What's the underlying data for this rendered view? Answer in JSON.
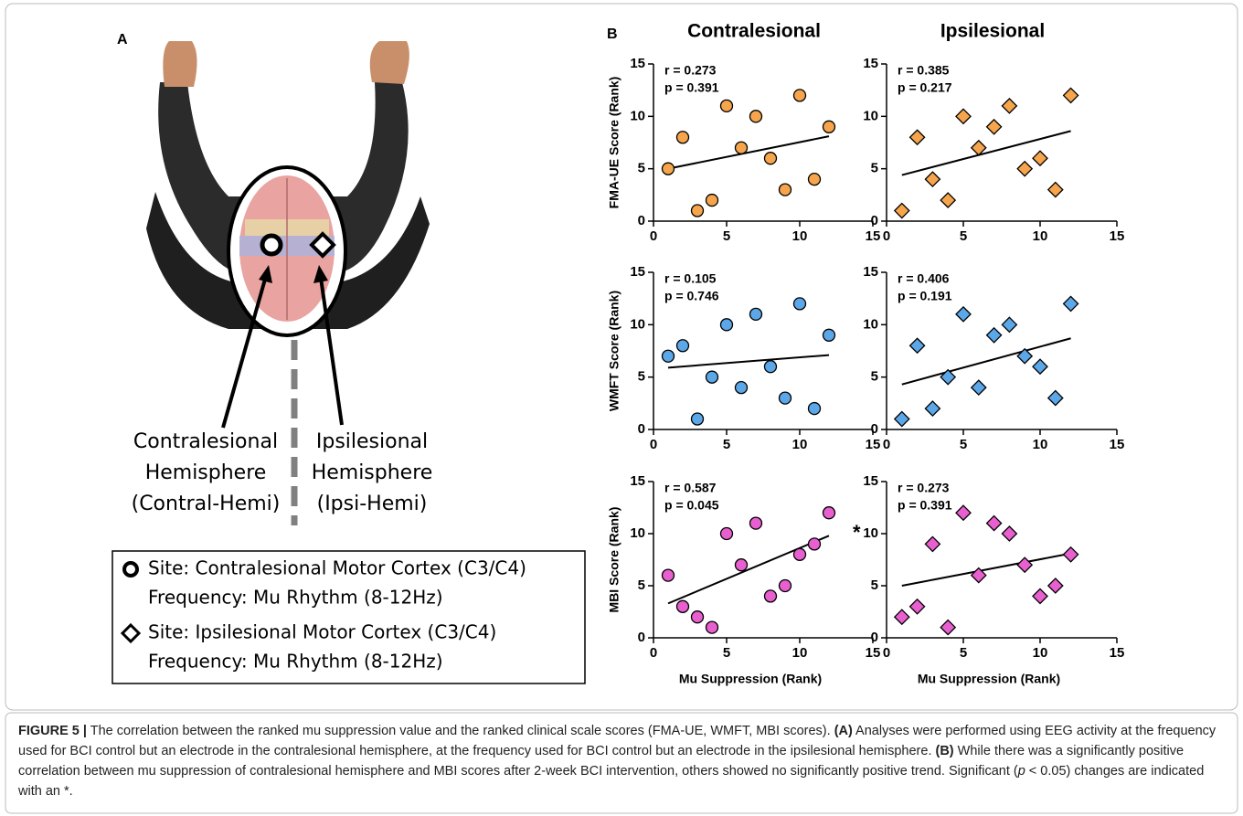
{
  "panel_labels": [
    "A",
    "B"
  ],
  "panel_a": {
    "left_label": [
      "Contralesional",
      "Hemisphere",
      "(Contral-Hemi)"
    ],
    "right_label": [
      "Ipsilesional",
      "Hemisphere",
      "(Ipsi-Hemi)"
    ],
    "legend": [
      {
        "marker": "circle",
        "lines": [
          "Site: Contralesional Motor Cortex (C3/C4)",
          "Frequency: Mu Rhythm (8-12Hz)"
        ]
      },
      {
        "marker": "diamond",
        "lines": [
          "Site: Ipsilesional Motor Cortex (C3/C4)",
          "Frequency: Mu Rhythm (8-12Hz)"
        ]
      }
    ]
  },
  "chart_data": [
    {
      "type": "scatter",
      "title": "Contralesional",
      "ylabel": "FMA-UE Score (Rank)",
      "annotations": [
        "r = 0.273",
        "p = 0.391"
      ],
      "xlim": [
        0,
        15
      ],
      "ylim": [
        0,
        15
      ],
      "xticks": [
        0,
        5,
        10,
        15
      ],
      "yticks": [
        0,
        5,
        10,
        15
      ],
      "series": [
        {
          "color": "#f6a54c",
          "marker": "circle",
          "x": [
            1,
            2,
            3,
            4,
            5,
            6,
            7,
            8,
            9,
            10,
            11,
            12
          ],
          "values": [
            5,
            8,
            1,
            2,
            11,
            7,
            10,
            6,
            3,
            12,
            4,
            9
          ]
        }
      ],
      "trend_line": {
        "x": [
          1,
          12
        ],
        "values": [
          5,
          8.1
        ]
      }
    },
    {
      "type": "scatter",
      "title": "Ipsilesional",
      "annotations": [
        "r = 0.385",
        "p = 0.217"
      ],
      "xlim": [
        0,
        15
      ],
      "ylim": [
        0,
        15
      ],
      "xticks": [
        0,
        5,
        10,
        15
      ],
      "yticks": [
        0,
        5,
        10,
        15
      ],
      "series": [
        {
          "color": "#f6a54c",
          "marker": "diamond",
          "x": [
            1,
            2,
            3,
            4,
            5,
            6,
            7,
            8,
            9,
            10,
            11,
            12
          ],
          "values": [
            1,
            8,
            4,
            2,
            10,
            7,
            9,
            11,
            5,
            6,
            3,
            12
          ]
        }
      ],
      "trend_line": {
        "x": [
          1,
          12
        ],
        "values": [
          4.4,
          8.6
        ]
      }
    },
    {
      "type": "scatter",
      "ylabel": "WMFT Score (Rank)",
      "annotations": [
        "r = 0.105",
        "p = 0.746"
      ],
      "xlim": [
        0,
        15
      ],
      "ylim": [
        0,
        15
      ],
      "xticks": [
        0,
        5,
        10,
        15
      ],
      "yticks": [
        0,
        5,
        10,
        15
      ],
      "series": [
        {
          "color": "#5ba7e8",
          "marker": "circle",
          "x": [
            1,
            2,
            3,
            4,
            5,
            6,
            7,
            8,
            9,
            10,
            11,
            12
          ],
          "values": [
            7,
            8,
            1,
            5,
            10,
            4,
            11,
            6,
            3,
            12,
            2,
            9
          ]
        }
      ],
      "trend_line": {
        "x": [
          1,
          12
        ],
        "values": [
          5.9,
          7.1
        ]
      }
    },
    {
      "type": "scatter",
      "annotations": [
        "r = 0.406",
        "p = 0.191"
      ],
      "xlim": [
        0,
        15
      ],
      "ylim": [
        0,
        15
      ],
      "xticks": [
        0,
        5,
        10,
        15
      ],
      "yticks": [
        0,
        5,
        10,
        15
      ],
      "series": [
        {
          "color": "#5ba7e8",
          "marker": "diamond",
          "x": [
            1,
            2,
            3,
            4,
            5,
            6,
            7,
            8,
            9,
            10,
            11,
            12
          ],
          "values": [
            1,
            8,
            2,
            5,
            11,
            4,
            9,
            10,
            7,
            6,
            3,
            12
          ]
        }
      ],
      "trend_line": {
        "x": [
          1,
          12
        ],
        "values": [
          4.3,
          8.7
        ]
      }
    },
    {
      "type": "scatter",
      "ylabel": "MBI Score (Rank)",
      "xlabel": "Mu Suppression (Rank)",
      "annotations": [
        "r = 0.587",
        "p = 0.045"
      ],
      "significance": "*",
      "xlim": [
        0,
        15
      ],
      "ylim": [
        0,
        15
      ],
      "xticks": [
        0,
        5,
        10,
        15
      ],
      "yticks": [
        0,
        5,
        10,
        15
      ],
      "series": [
        {
          "color": "#e85fcf",
          "marker": "circle",
          "x": [
            1,
            2,
            3,
            4,
            5,
            6,
            7,
            8,
            9,
            10,
            11,
            12
          ],
          "values": [
            6,
            3,
            2,
            1,
            10,
            7,
            11,
            4,
            5,
            8,
            9,
            12
          ]
        }
      ],
      "trend_line": {
        "x": [
          1,
          12
        ],
        "values": [
          3.3,
          9.8
        ]
      }
    },
    {
      "type": "scatter",
      "xlabel": "Mu Suppression (Rank)",
      "annotations": [
        "r = 0.273",
        "p = 0.391"
      ],
      "xlim": [
        0,
        15
      ],
      "ylim": [
        0,
        15
      ],
      "xticks": [
        0,
        5,
        10,
        15
      ],
      "yticks": [
        0,
        5,
        10,
        15
      ],
      "series": [
        {
          "color": "#e85fcf",
          "marker": "diamond",
          "x": [
            1,
            2,
            3,
            4,
            5,
            6,
            7,
            8,
            9,
            10,
            11,
            12
          ],
          "values": [
            2,
            3,
            9,
            1,
            12,
            6,
            11,
            10,
            7,
            4,
            5,
            8
          ]
        }
      ],
      "trend_line": {
        "x": [
          1,
          12
        ],
        "values": [
          5,
          8.1
        ]
      }
    }
  ],
  "caption": {
    "segments": [
      {
        "text": "FIGURE 5 |",
        "bold": true
      },
      {
        "text": " The correlation between the ranked mu suppression value and the ranked clinical scale scores (FMA-UE, WMFT, MBI scores). "
      },
      {
        "text": "(A)",
        "bold": true
      },
      {
        "text": " Analyses were performed using EEG activity at the frequency used for BCI control but an electrode in the contralesional hemisphere, at the frequency used for BCI control but an electrode in the ipsilesional hemisphere. "
      },
      {
        "text": "(B)",
        "bold": true
      },
      {
        "text": " While there was a significantly positive correlation between mu suppression of contralesional hemisphere and MBI scores after 2-week BCI intervention, others showed no significantly positive trend. Significant ("
      },
      {
        "text": "p",
        "italic": true
      },
      {
        "text": " < 0.05) changes are indicated with an *."
      }
    ]
  }
}
